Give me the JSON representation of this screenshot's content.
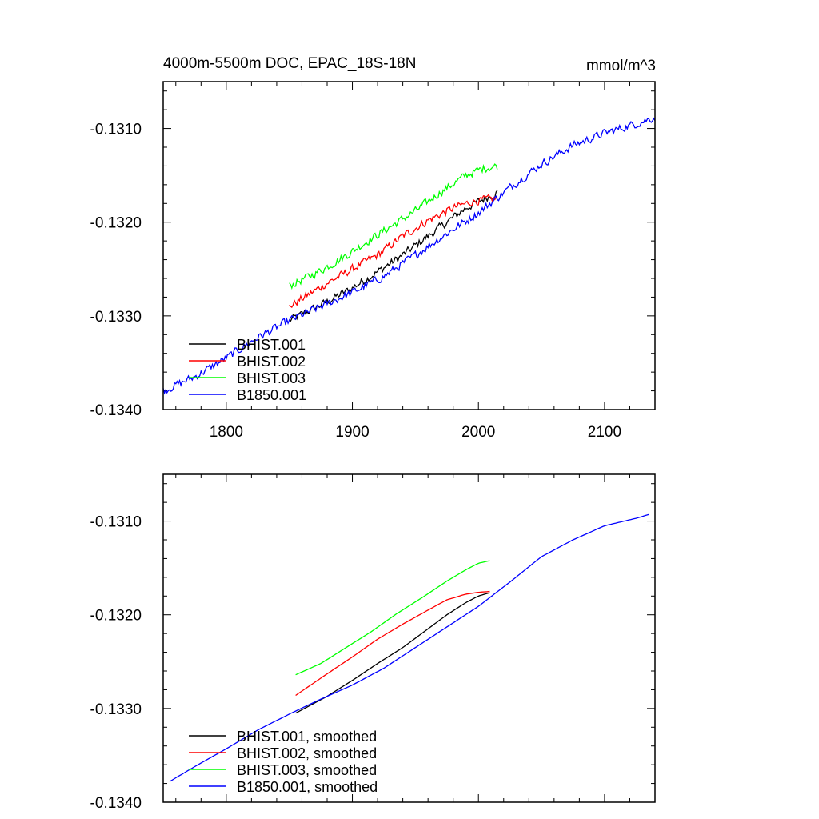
{
  "chart_data": [
    {
      "type": "line",
      "title": "4000m-5500m DOC, EPAC_18S-18N",
      "units": "mmol/m^3",
      "xlim": [
        1750,
        2140
      ],
      "ylim": [
        -0.134,
        -0.1305
      ],
      "x_ticks": [
        1800,
        1900,
        2000,
        2100
      ],
      "x_tick_labels": [
        "1800",
        "1900",
        "2000",
        "2100"
      ],
      "y_ticks": [
        -0.134,
        -0.133,
        -0.132,
        -0.131
      ],
      "y_tick_labels": [
        "-0.1340",
        "-0.1330",
        "-0.1320",
        "-0.1310"
      ],
      "legend_position": "bottom-left",
      "series": [
        {
          "name": "BHIST.001",
          "color": "#000000",
          "noise": 4e-05,
          "x": [
            1850,
            1880,
            1900,
            1920,
            1940,
            1960,
            1975,
            1990,
            2000,
            2015
          ],
          "y": [
            -0.13305,
            -0.13285,
            -0.1327,
            -0.13253,
            -0.13235,
            -0.13215,
            -0.132,
            -0.13185,
            -0.13178,
            -0.13168
          ]
        },
        {
          "name": "BHIST.002",
          "color": "#ff0000",
          "noise": 4e-05,
          "x": [
            1850,
            1880,
            1900,
            1920,
            1940,
            1960,
            1980,
            1995,
            2005,
            2015
          ],
          "y": [
            -0.1329,
            -0.13265,
            -0.1325,
            -0.13235,
            -0.13215,
            -0.13198,
            -0.13185,
            -0.13178,
            -0.13176,
            -0.13175
          ]
        },
        {
          "name": "BHIST.003",
          "color": "#00ff00",
          "noise": 4e-05,
          "x": [
            1850,
            1870,
            1890,
            1910,
            1930,
            1950,
            1970,
            1990,
            2005,
            2015
          ],
          "y": [
            -0.13268,
            -0.13255,
            -0.1324,
            -0.13222,
            -0.13205,
            -0.13188,
            -0.13168,
            -0.1315,
            -0.13142,
            -0.1314
          ]
        },
        {
          "name": "B1850.001",
          "color": "#0000ff",
          "noise": 4e-05,
          "x": [
            1750,
            1775,
            1800,
            1825,
            1850,
            1875,
            1900,
            1925,
            1950,
            1975,
            2000,
            2025,
            2050,
            2075,
            2100,
            2125,
            2140
          ],
          "y": [
            -0.1338,
            -0.13365,
            -0.13345,
            -0.13323,
            -0.13305,
            -0.1329,
            -0.13275,
            -0.13258,
            -0.13235,
            -0.13212,
            -0.1319,
            -0.13163,
            -0.13138,
            -0.13118,
            -0.13105,
            -0.13095,
            -0.13088
          ]
        }
      ]
    },
    {
      "type": "line",
      "title": "",
      "xlim": [
        1750,
        2140
      ],
      "ylim": [
        -0.134,
        -0.1305
      ],
      "x_ticks": [
        1800,
        1900,
        2000,
        2100
      ],
      "x_tick_labels": [],
      "y_ticks": [
        -0.134,
        -0.133,
        -0.132,
        -0.131
      ],
      "y_tick_labels": [
        "-0.1340",
        "-0.1330",
        "-0.1320",
        "-0.1310"
      ],
      "legend_position": "bottom-left",
      "series": [
        {
          "name": "BHIST.001, smoothed",
          "color": "#000000",
          "noise": 0,
          "x": [
            1855,
            1880,
            1900,
            1920,
            1940,
            1960,
            1975,
            1990,
            2000,
            2010
          ],
          "y": [
            -0.13305,
            -0.13287,
            -0.1327,
            -0.13252,
            -0.13235,
            -0.13215,
            -0.132,
            -0.13187,
            -0.1318,
            -0.13176
          ]
        },
        {
          "name": "BHIST.002, smoothed",
          "color": "#ff0000",
          "noise": 0,
          "x": [
            1855,
            1880,
            1900,
            1920,
            1940,
            1960,
            1975,
            1990,
            2000,
            2010
          ],
          "y": [
            -0.13286,
            -0.13263,
            -0.13245,
            -0.13226,
            -0.1321,
            -0.13195,
            -0.13184,
            -0.13178,
            -0.13176,
            -0.13175
          ]
        },
        {
          "name": "BHIST.003, smoothed",
          "color": "#00ff00",
          "noise": 0,
          "x": [
            1855,
            1875,
            1895,
            1915,
            1935,
            1955,
            1975,
            1990,
            2000,
            2010
          ],
          "y": [
            -0.13264,
            -0.13252,
            -0.13235,
            -0.13218,
            -0.13199,
            -0.13182,
            -0.13164,
            -0.13152,
            -0.13145,
            -0.13142
          ]
        },
        {
          "name": "B1850.001, smoothed",
          "color": "#0000ff",
          "noise": 0,
          "x": [
            1755,
            1775,
            1800,
            1825,
            1850,
            1875,
            1900,
            1925,
            1950,
            1975,
            2000,
            2025,
            2050,
            2075,
            2100,
            2125,
            2135
          ],
          "y": [
            -0.13378,
            -0.13362,
            -0.13343,
            -0.13323,
            -0.13306,
            -0.1329,
            -0.13275,
            -0.13257,
            -0.13235,
            -0.13213,
            -0.13191,
            -0.13165,
            -0.13138,
            -0.1312,
            -0.13105,
            -0.13097,
            -0.13093
          ]
        }
      ]
    }
  ]
}
